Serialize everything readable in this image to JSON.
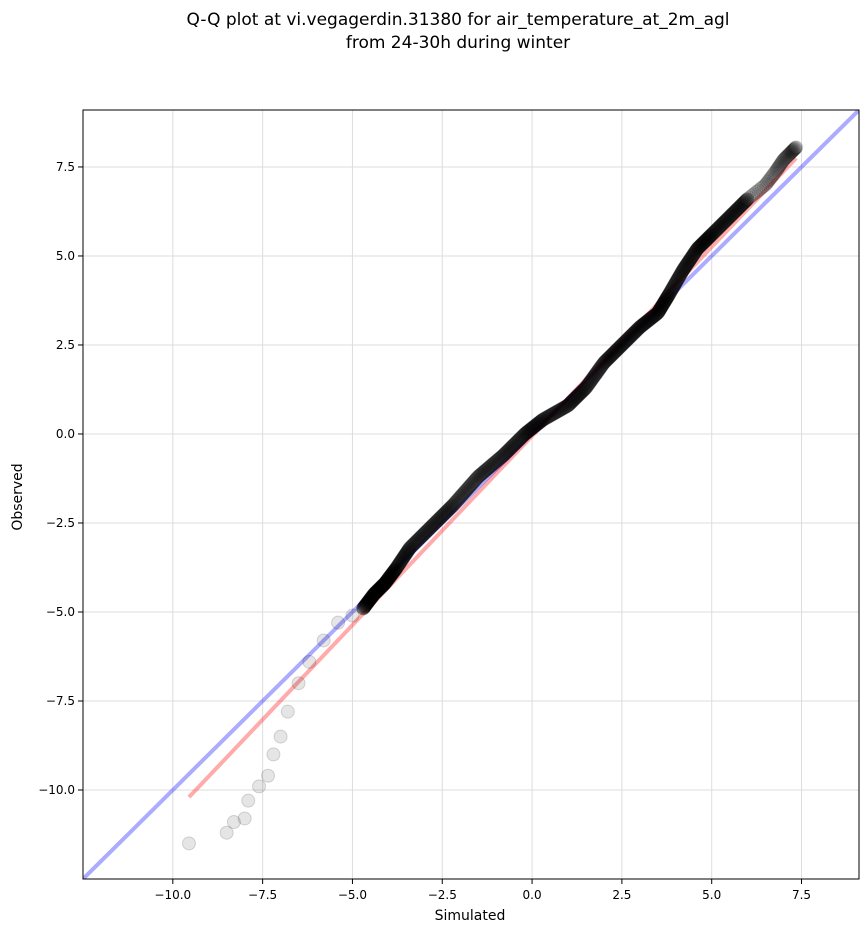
{
  "chart_data": {
    "type": "scatter",
    "title": "Q-Q plot at vi.vegagerdin.31380 for air_temperature_at_2m_agl",
    "subtitle": "from 24-30h during winter",
    "xlabel": "Simulated",
    "ylabel": "Observed",
    "xlim": [
      -12.5,
      9.1
    ],
    "ylim": [
      -12.5,
      9.1
    ],
    "xticks": [
      -10.0,
      -7.5,
      -5.0,
      -2.5,
      0.0,
      2.5,
      5.0,
      7.5
    ],
    "yticks": [
      -10.0,
      -7.5,
      -5.0,
      -2.5,
      0.0,
      2.5,
      5.0,
      7.5
    ],
    "xtick_labels": [
      "−10.0",
      "−7.5",
      "−5.0",
      "−2.5",
      "0.0",
      "2.5",
      "5.0",
      "7.5"
    ],
    "ytick_labels": [
      "−10.0",
      "−7.5",
      "−5.0",
      "−2.5",
      "0.0",
      "2.5",
      "5.0",
      "7.5"
    ],
    "grid": true,
    "colors": {
      "points": "#000000",
      "identity_line": "#0000ff",
      "fit_line": "#ff0000"
    },
    "identity_line": {
      "x": [
        -12.5,
        9.1
      ],
      "y": [
        -12.5,
        9.1
      ]
    },
    "fit_line": {
      "x": [
        -9.55,
        7.35
      ],
      "y": [
        -10.2,
        7.75
      ]
    },
    "quantile_anchors": {
      "x": [
        -9.55,
        -8.5,
        -8.3,
        -8.0,
        -7.9,
        -7.6,
        -7.35,
        -7.2,
        -7.0,
        -6.8,
        -6.5,
        -6.2,
        -5.8,
        -5.4,
        -5.0,
        -4.7,
        -4.4,
        -4.1,
        -3.8,
        -3.4,
        -2.8,
        -2.2,
        -1.5,
        -0.8,
        -0.2,
        0.3,
        1.0,
        1.5,
        2.0,
        2.5,
        3.0,
        3.5,
        3.8,
        4.2,
        4.6,
        5.0,
        5.5,
        6.0,
        6.5,
        6.8,
        7.0,
        7.2,
        7.35
      ],
      "y": [
        -11.5,
        -11.2,
        -10.9,
        -10.8,
        -10.3,
        -9.9,
        -9.6,
        -9.0,
        -8.5,
        -7.8,
        -7.0,
        -6.4,
        -5.8,
        -5.3,
        -5.1,
        -4.9,
        -4.5,
        -4.2,
        -3.8,
        -3.2,
        -2.6,
        -2.0,
        -1.2,
        -0.6,
        0.0,
        0.4,
        0.8,
        1.3,
        2.0,
        2.5,
        3.0,
        3.4,
        3.9,
        4.6,
        5.2,
        5.6,
        6.1,
        6.6,
        7.0,
        7.4,
        7.7,
        7.9,
        8.05
      ]
    }
  }
}
